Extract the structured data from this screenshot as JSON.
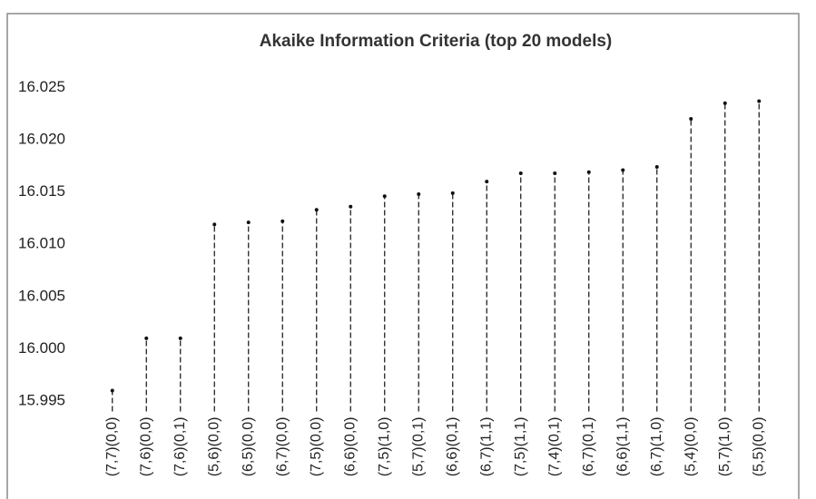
{
  "chart_data": {
    "type": "dropline",
    "title": "Akaike Information Criteria (top 20 models)",
    "categories": [
      "(7,7)(0,0)",
      "(7,6)(0,0)",
      "(7,6)(0,1)",
      "(5,6)(0,0)",
      "(6,5)(0,0)",
      "(6,7)(0,0)",
      "(7,5)(0,0)",
      "(6,6)(0,0)",
      "(7,5)(1,0)",
      "(5,7)(0,1)",
      "(6,6)(0,1)",
      "(6,7)(1,1)",
      "(7,5)(1,1)",
      "(7,4)(0,1)",
      "(6,7)(0,1)",
      "(6,6)(1,1)",
      "(6,7)(1,0)",
      "(5,4)(0,0)",
      "(5,7)(1,0)",
      "(5,5)(0,0)"
    ],
    "values": [
      15.996,
      16.001,
      16.001,
      16.0119,
      16.0121,
      16.0122,
      16.0133,
      16.0136,
      16.0146,
      16.0148,
      16.0149,
      16.016,
      16.0168,
      16.0168,
      16.0169,
      16.0171,
      16.0174,
      16.022,
      16.0235,
      16.0237
    ],
    "color": "#111111",
    "ylim": [
      15.994,
      16.0255
    ],
    "yticks": [
      {
        "value": 15.995,
        "label": "15.995"
      },
      {
        "value": 16.0,
        "label": "16.000"
      },
      {
        "value": 16.005,
        "label": "16.005"
      },
      {
        "value": 16.01,
        "label": "16.010"
      },
      {
        "value": 16.015,
        "label": "16.015"
      },
      {
        "value": 16.02,
        "label": "16.020"
      },
      {
        "value": 16.025,
        "label": "16.025"
      }
    ],
    "grid": false
  }
}
